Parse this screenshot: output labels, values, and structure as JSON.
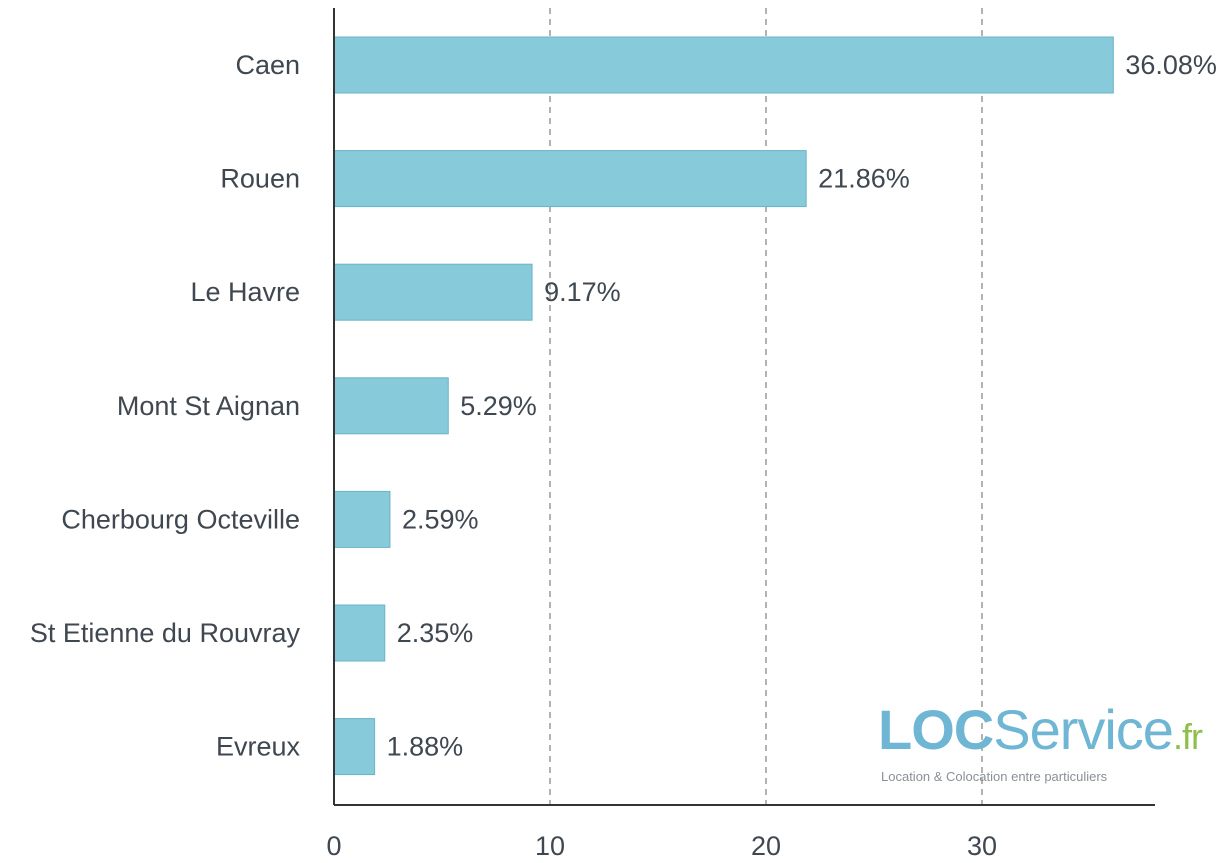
{
  "chart_data": {
    "type": "bar",
    "orientation": "horizontal",
    "categories": [
      "Caen",
      "Rouen",
      "Le Havre",
      "Mont St Aignan",
      "Cherbourg Octeville",
      "St Etienne du Rouvray",
      "Evreux"
    ],
    "values": [
      36.08,
      21.86,
      9.17,
      5.29,
      2.59,
      2.35,
      1.88
    ],
    "value_labels": [
      "36.08%",
      "21.86%",
      "9.17%",
      "5.29%",
      "2.59%",
      "2.35%",
      "1.88%"
    ],
    "xticks": [
      "0",
      "10",
      "20",
      "30"
    ],
    "xlim": [
      0,
      38
    ],
    "grid": "vertical dashed",
    "bar_color": "#87cad9",
    "bar_border_color": "#6ab3c8"
  },
  "logo": {
    "loc": "LOC",
    "service": "Service",
    "fr": ".fr",
    "tagline": "Location & Colocation entre particuliers"
  }
}
